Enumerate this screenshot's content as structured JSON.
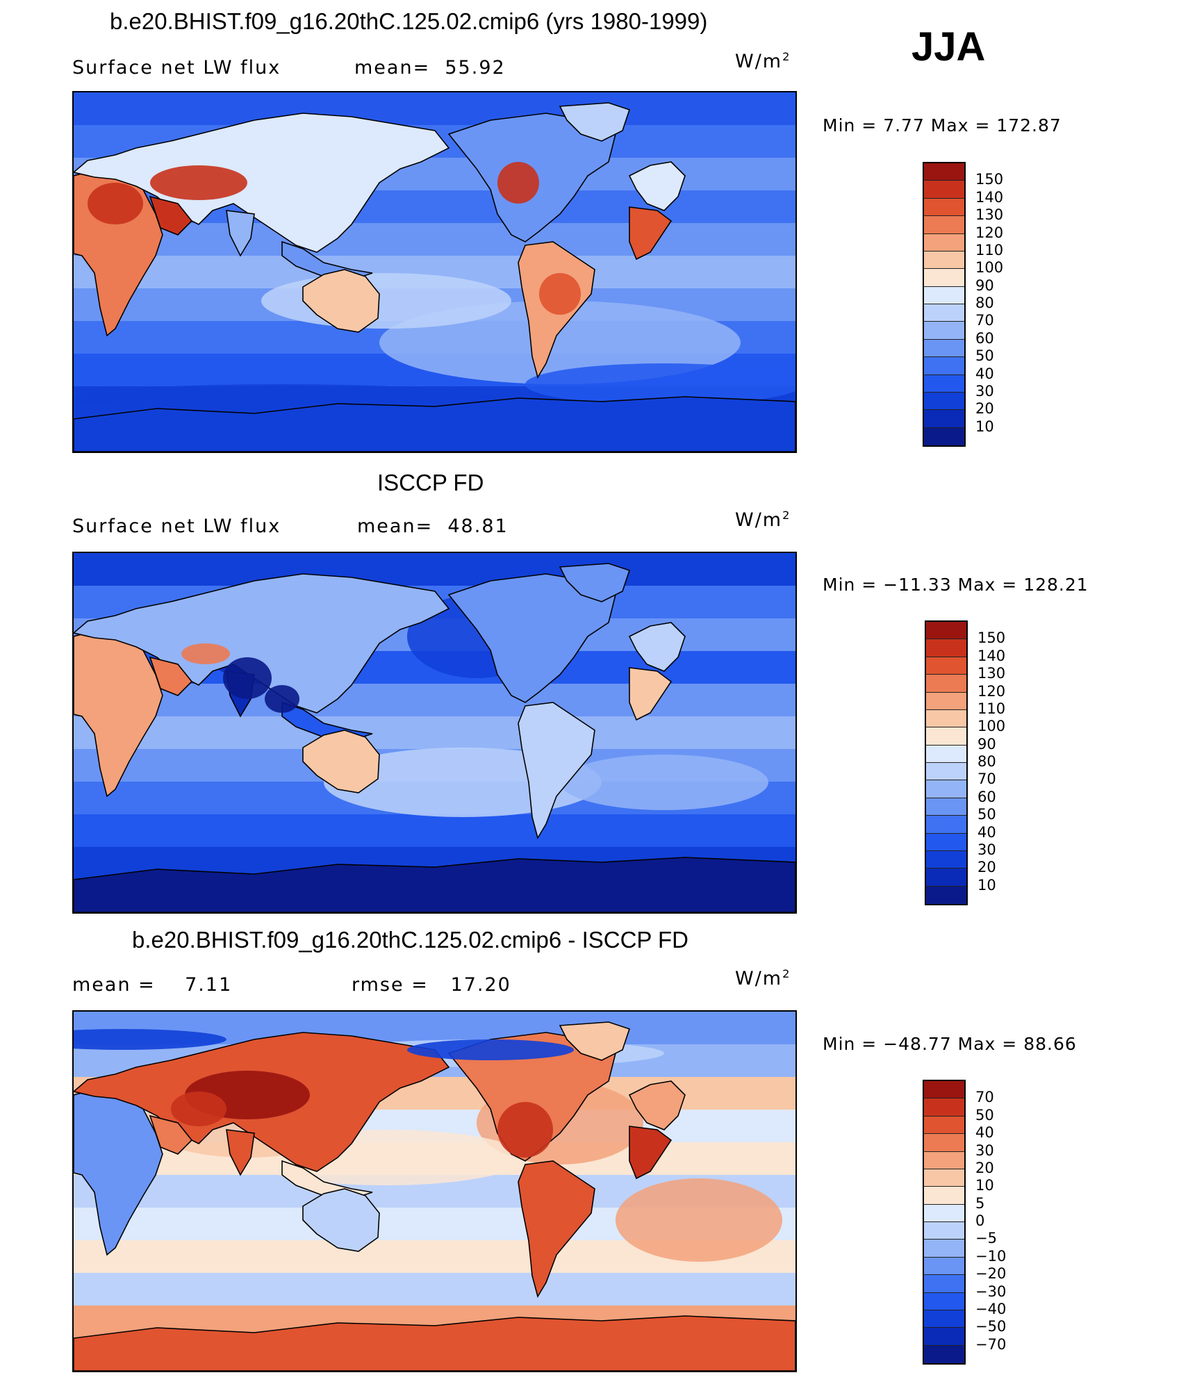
{
  "season": "JJA",
  "panels": [
    {
      "title": "b.e20.BHIST.f09_g16.20thC.125.02.cmip6 (yrs 1980-1999)",
      "left_label": "Surface net LW flux",
      "mid_label": "mean=",
      "mid_value": "55.92",
      "units": "W/m",
      "units_exp": "2",
      "minmax": "Min =    7.77  Max  =  172.87",
      "levels": [
        "150",
        "140",
        "130",
        "120",
        "110",
        "100",
        "90",
        "80",
        "70",
        "60",
        "50",
        "40",
        "30",
        "20",
        "10"
      ],
      "kind": "model"
    },
    {
      "title": "ISCCP FD",
      "left_label": "Surface net LW flux",
      "mid_label": "mean=",
      "mid_value": "48.81",
      "units": "W/m",
      "units_exp": "2",
      "minmax": "Min = −11.33  Max  =  128.21",
      "levels": [
        "150",
        "140",
        "130",
        "120",
        "110",
        "100",
        "90",
        "80",
        "70",
        "60",
        "50",
        "40",
        "30",
        "20",
        "10"
      ],
      "kind": "obs"
    },
    {
      "title": "b.e20.BHIST.f09_g16.20thC.125.02.cmip6 - ISCCP FD",
      "left_label": "mean  =",
      "left_value": "7.11",
      "mid_label": "rmse  =",
      "mid_value": "17.20",
      "units": "W/m",
      "units_exp": "2",
      "minmax": "Min = −48.77  Max  =   88.66",
      "levels": [
        "70",
        "50",
        "40",
        "30",
        "20",
        "10",
        "5",
        "0",
        "−5",
        "−10",
        "−20",
        "−30",
        "−40",
        "−50",
        "−70"
      ],
      "kind": "diff"
    }
  ],
  "colors": {
    "flux_scale": [
      "#0a1a8a",
      "#0a2ab8",
      "#1140d8",
      "#2258ee",
      "#3f72f2",
      "#6a95f5",
      "#93b4f7",
      "#bcd2fa",
      "#dde9fc",
      "#fbe6d3",
      "#f8c7a6",
      "#f3a27b",
      "#ec7a52",
      "#e05430",
      "#c8321c",
      "#9a1410"
    ],
    "diff_scale": [
      "#0a1a8a",
      "#0a2ab8",
      "#1140d8",
      "#2258ee",
      "#3f72f2",
      "#6a95f5",
      "#93b4f7",
      "#bcd2fa",
      "#dde9fc",
      "#fbe6d3",
      "#f8c7a6",
      "#f3a27b",
      "#ec7a52",
      "#e05430",
      "#c8321c",
      "#9a1410"
    ]
  }
}
